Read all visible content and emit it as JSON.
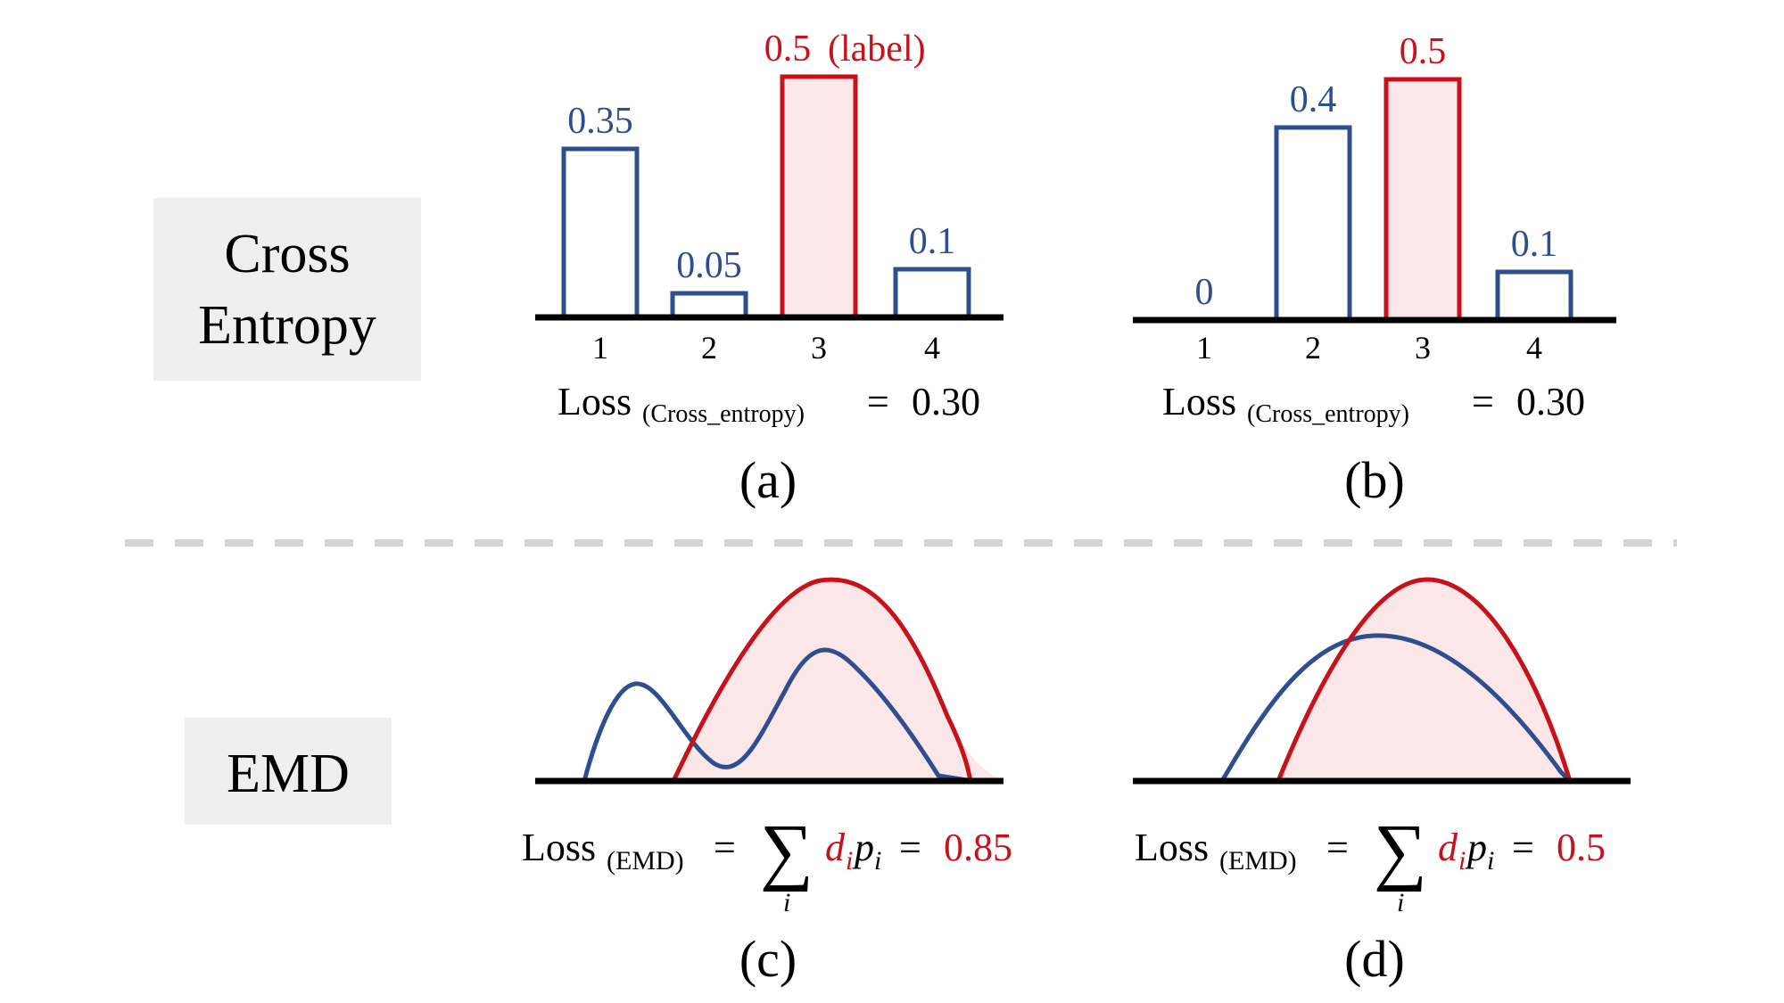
{
  "colors": {
    "blue": "#2e4f8f",
    "red": "#c8121b",
    "pink_fill": "#fbe7e7",
    "axis": "#000000",
    "label_box": "#efefef",
    "divider": "#d4d4d4"
  },
  "rows": {
    "cross_entropy": {
      "line1": "Cross",
      "line2": "Entropy"
    },
    "emd": {
      "label": "EMD"
    }
  },
  "panels": {
    "a": {
      "caption": "(a)",
      "chart_data": {
        "type": "bar",
        "categories": [
          "1",
          "2",
          "3",
          "4"
        ],
        "values": [
          0.35,
          0.05,
          0.5,
          0.1
        ],
        "value_labels": [
          "0.35",
          "0.05",
          "0.5",
          "0.1"
        ],
        "highlight_index": 2,
        "highlight_note": "(label)"
      },
      "loss": {
        "prefix": "Loss",
        "subscript": "(Cross_entropy)",
        "equals": "=",
        "value": "0.30"
      }
    },
    "b": {
      "caption": "(b)",
      "chart_data": {
        "type": "bar",
        "categories": [
          "1",
          "2",
          "3",
          "4"
        ],
        "values": [
          0,
          0.4,
          0.5,
          0.1
        ],
        "value_labels": [
          "0",
          "0.4",
          "0.5",
          "0.1"
        ],
        "highlight_index": 2
      },
      "loss": {
        "prefix": "Loss",
        "subscript": "(Cross_entropy)",
        "equals": "=",
        "value": "0.30"
      }
    },
    "c": {
      "caption": "(c)",
      "loss": {
        "prefix": "Loss",
        "subscript": "(EMD)",
        "equals": "=",
        "sum": "∑",
        "sum_index": "i",
        "d": "d",
        "p": "p",
        "eq2": "=",
        "value": "0.85"
      }
    },
    "d": {
      "caption": "(d)",
      "loss": {
        "prefix": "Loss",
        "subscript": "(EMD)",
        "equals": "=",
        "sum": "∑",
        "sum_index": "i",
        "d": "d",
        "p": "p",
        "eq2": "=",
        "value": "0.5"
      }
    }
  }
}
